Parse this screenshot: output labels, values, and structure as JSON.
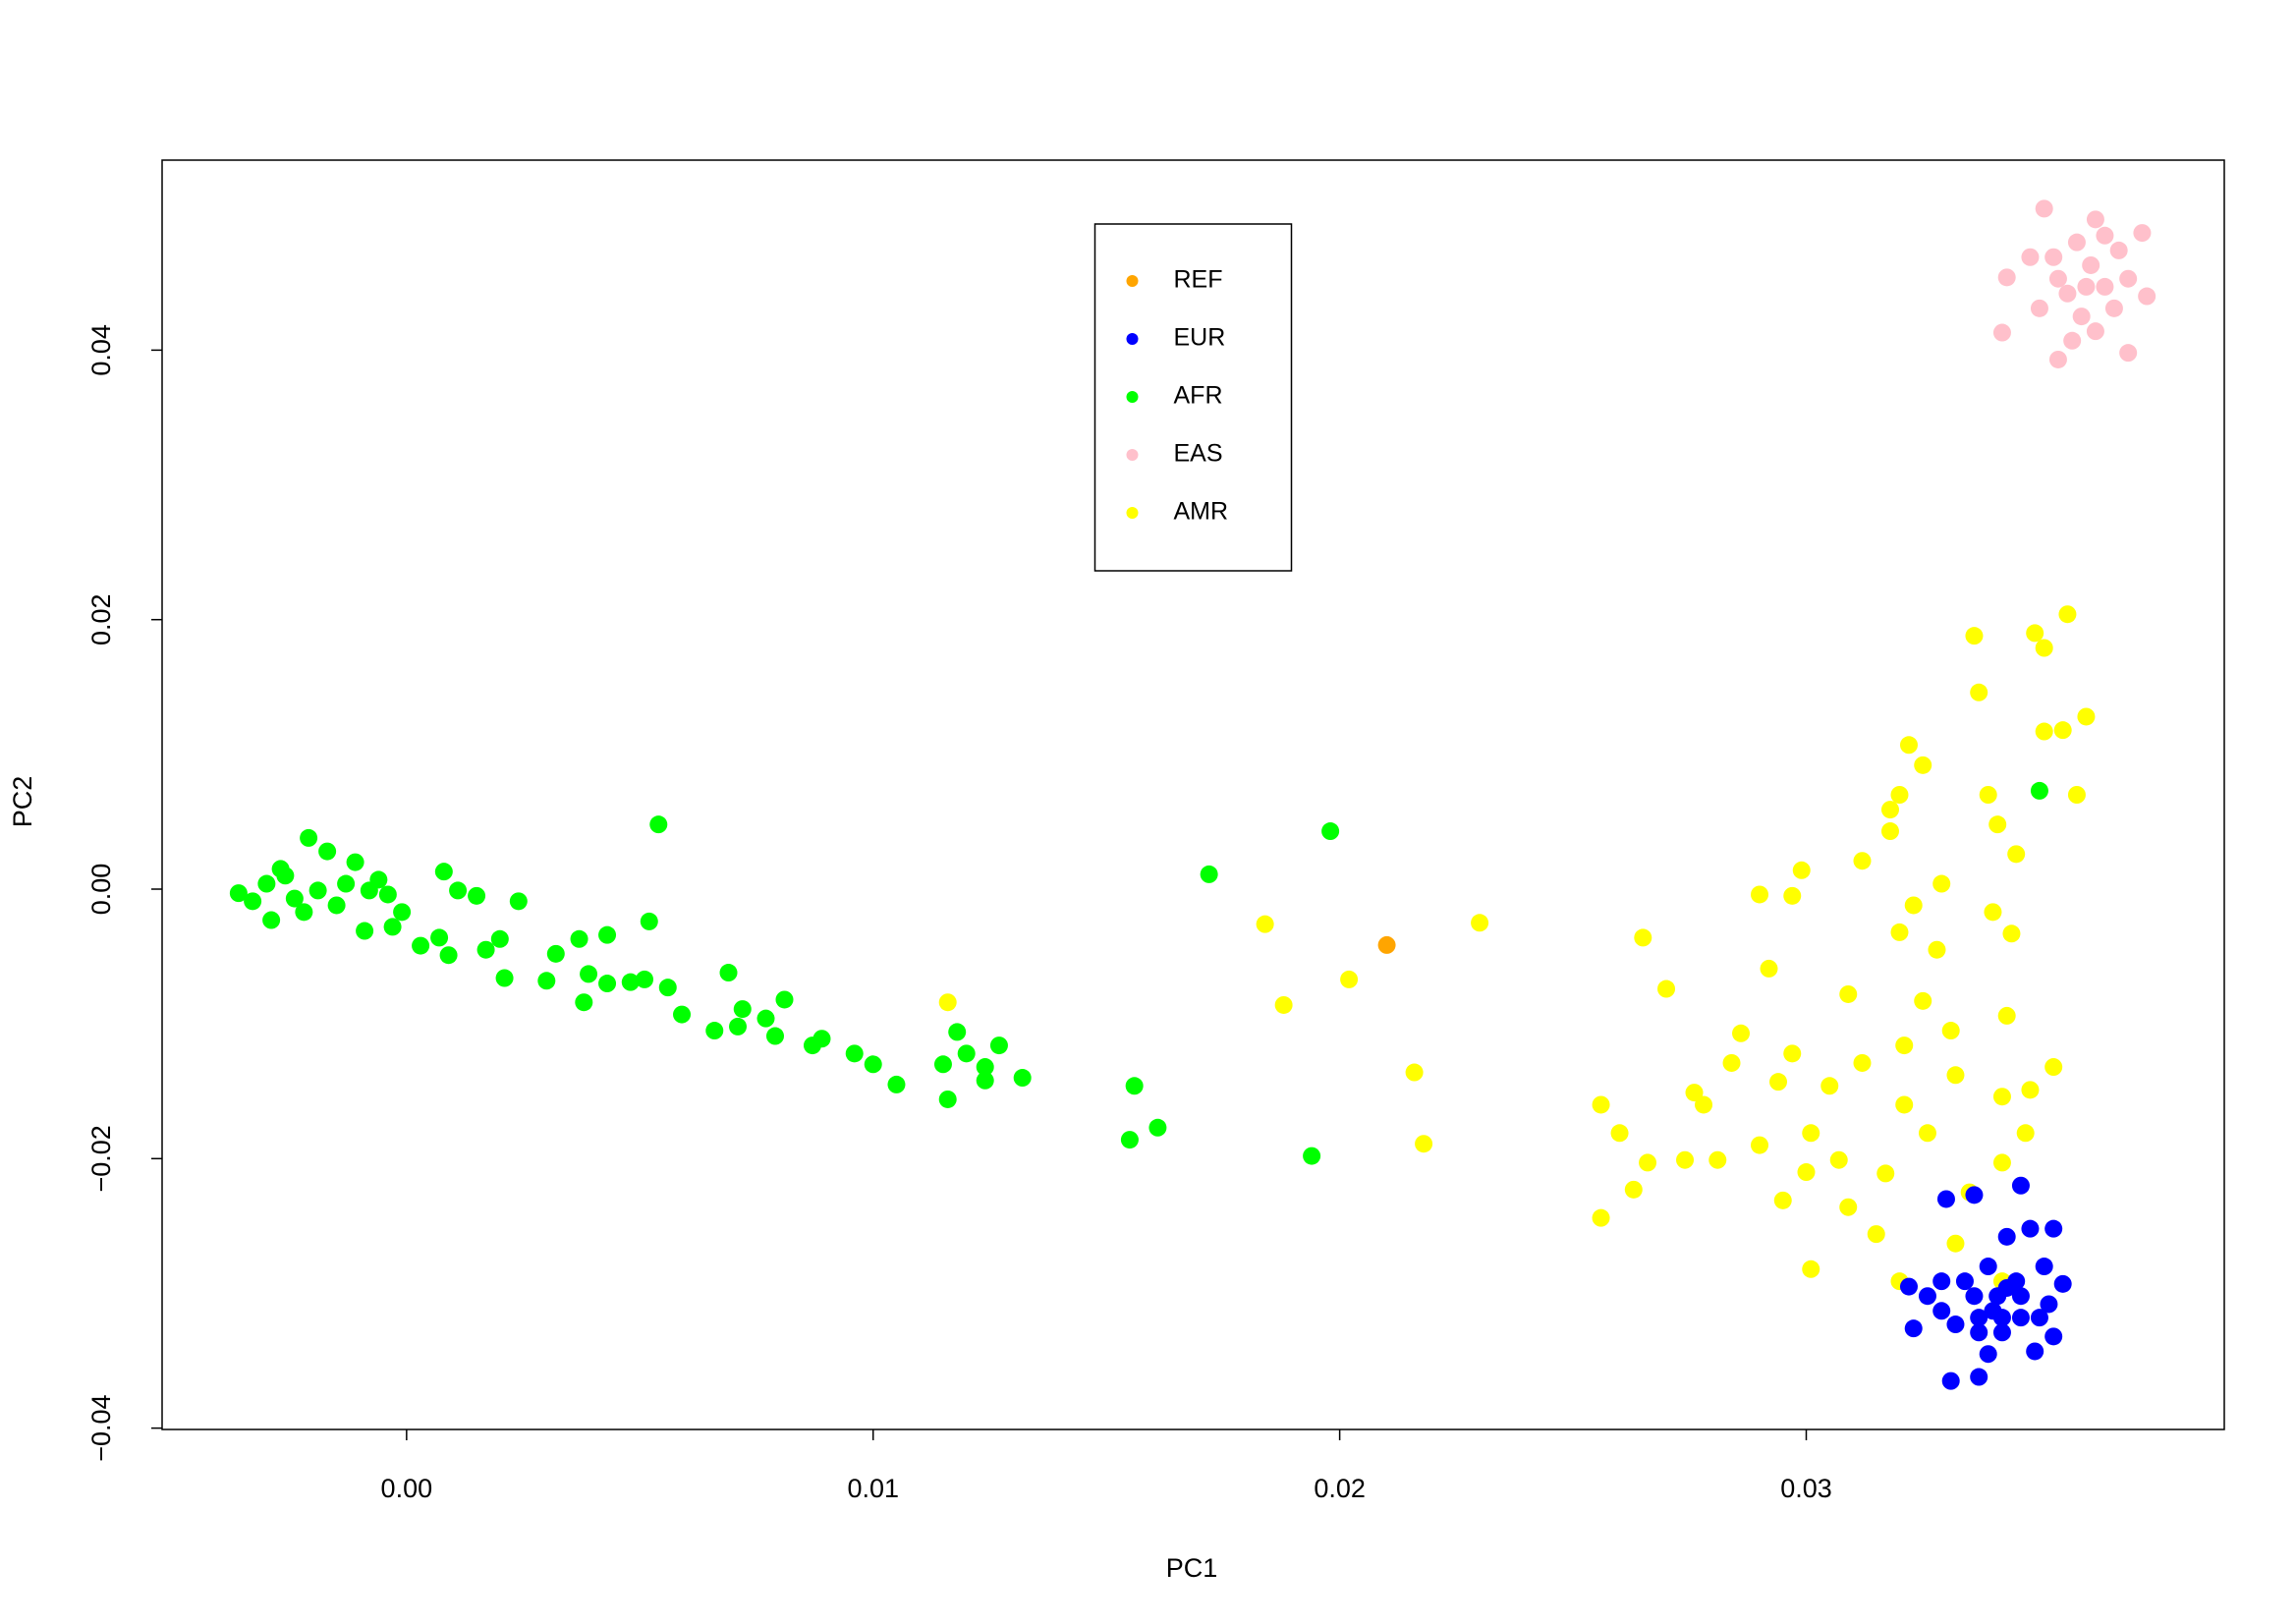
{
  "chart_data": {
    "type": "scatter",
    "xlabel": "PC1",
    "ylabel": "PC2",
    "xlim": [
      -0.00524,
      0.03896
    ],
    "ylim": [
      -0.0401,
      0.0541
    ],
    "xticks": [
      {
        "value": 0,
        "label": "0.00"
      },
      0.01,
      0.02,
      0.03
    ],
    "yticks": [
      {
        "value": -0.04,
        "label": "−0.04"
      },
      {
        "value": -0.02,
        "label": "−0.02"
      },
      {
        "value": 0,
        "label": "0.00"
      },
      0.02,
      0.04
    ],
    "grid": false,
    "legend": "top",
    "series": [
      {
        "name": "REF",
        "color": "#ffa500",
        "x": [
          0.02101
        ],
        "y": [
          -0.00415
        ]
      },
      {
        "name": "EUR",
        "color": "#0000ff",
        "x": [
          0.0322,
          0.0323,
          0.0326,
          0.0329,
          0.033,
          0.0331,
          0.0332,
          0.0334,
          0.0336,
          0.0337,
          0.0337,
          0.0339,
          0.0339,
          0.0341,
          0.0342,
          0.0343,
          0.0345,
          0.0346,
          0.0346,
          0.0348,
          0.0349,
          0.0351,
          0.0352,
          0.0353,
          0.0355,
          0.0353,
          0.0336,
          0.034,
          0.0343,
          0.0346,
          0.035,
          0.0329,
          0.0337,
          0.0342
        ],
        "y": [
          -0.0295,
          -0.0326,
          -0.0302,
          -0.0313,
          -0.023,
          -0.0365,
          -0.0323,
          -0.0291,
          -0.0227,
          -0.0362,
          -0.0318,
          -0.028,
          -0.0345,
          -0.0302,
          -0.0329,
          -0.0258,
          -0.0291,
          -0.022,
          -0.0318,
          -0.0252,
          -0.0343,
          -0.028,
          -0.0308,
          -0.0252,
          -0.0293,
          -0.0332,
          -0.0302,
          -0.0313,
          -0.0296,
          -0.0302,
          -0.0318,
          -0.0291,
          -0.0329,
          -0.0318
        ]
      },
      {
        "name": "AFR",
        "color": "#00ff00",
        "x": [
          -0.0036,
          -0.0033,
          -0.003,
          -0.0029,
          -0.0026,
          -0.0024,
          -0.0021,
          -0.0019,
          -0.0017,
          -0.0015,
          -0.0011,
          -0.0009,
          -0.0006,
          -0.0003,
          -0.0001,
          -0.0027,
          -0.0022,
          -0.0013,
          -0.0008,
          -0.0004,
          0.0003,
          0.0007,
          0.0008,
          0.0009,
          0.0011,
          0.0015,
          0.0017,
          0.002,
          0.0021,
          0.0024,
          0.003,
          0.0032,
          0.0037,
          0.0038,
          0.0039,
          0.0043,
          0.0043,
          0.0048,
          0.0051,
          0.0052,
          0.0054,
          0.0056,
          0.0059,
          0.0066,
          0.0069,
          0.0071,
          0.0072,
          0.0077,
          0.0079,
          0.0081,
          0.0087,
          0.0089,
          0.0096,
          0.01,
          0.0105,
          0.0115,
          0.0116,
          0.0118,
          0.012,
          0.0124,
          0.0124,
          0.0127,
          0.0132,
          0.0155,
          0.0156,
          0.0161,
          0.0172,
          0.0194,
          0.0198,
          0.035
        ],
        "y": [
          -0.0003,
          -0.0009,
          0.0004,
          -0.0023,
          0.001,
          -0.0007,
          0.0038,
          -0.0001,
          0.0028,
          -0.0012,
          0.002,
          -0.0031,
          0.0007,
          -0.0028,
          -0.0017,
          0.0015,
          -0.0017,
          0.0004,
          -0.0001,
          -0.0004,
          -0.0042,
          -0.0036,
          0.0013,
          -0.0049,
          -0.0001,
          -0.0005,
          -0.0045,
          -0.0037,
          -0.0066,
          -0.0009,
          -0.0068,
          -0.0048,
          -0.0037,
          -0.0084,
          -0.0063,
          -0.0034,
          -0.007,
          -0.0069,
          -0.0067,
          -0.0024,
          0.0048,
          -0.0073,
          -0.0093,
          -0.0105,
          -0.0062,
          -0.0102,
          -0.0089,
          -0.0096,
          -0.0109,
          -0.0082,
          -0.0116,
          -0.0111,
          -0.0122,
          -0.013,
          -0.0145,
          -0.013,
          -0.0156,
          -0.0106,
          -0.0122,
          -0.0132,
          -0.0142,
          -0.0116,
          -0.014,
          -0.0186,
          -0.0146,
          -0.0177,
          0.0011,
          -0.0198,
          0.0043,
          0.0073
        ]
      },
      {
        "name": "EAS",
        "color": "#ffc0cb",
        "x": [
          0.0351,
          0.0343,
          0.0342,
          0.0354,
          0.0369,
          0.0373,
          0.0372,
          0.0362,
          0.0358,
          0.0361,
          0.0364,
          0.0356,
          0.0353,
          0.0367,
          0.0359,
          0.035,
          0.0366,
          0.0362,
          0.0354,
          0.0369,
          0.036,
          0.0357,
          0.0348,
          0.0364
        ],
        "y": [
          0.0505,
          0.0454,
          0.0413,
          0.0393,
          0.0398,
          0.044,
          0.0487,
          0.0497,
          0.048,
          0.0463,
          0.0447,
          0.0442,
          0.0469,
          0.0474,
          0.0425,
          0.0431,
          0.0431,
          0.0414,
          0.0453,
          0.0453,
          0.0447,
          0.0407,
          0.0469,
          0.0485
        ]
      },
      {
        "name": "AMR",
        "color": "#ffff00",
        "x": [
          0.0116,
          0.0184,
          0.0188,
          0.0202,
          0.0216,
          0.0218,
          0.023,
          0.0256,
          0.0256,
          0.026,
          0.0263,
          0.0265,
          0.0266,
          0.027,
          0.0274,
          0.0276,
          0.0278,
          0.0281,
          0.0284,
          0.0286,
          0.029,
          0.029,
          0.0292,
          0.0294,
          0.0295,
          0.0297,
          0.0297,
          0.0299,
          0.03,
          0.0301,
          0.0301,
          0.0305,
          0.0307,
          0.0309,
          0.0309,
          0.0312,
          0.0312,
          0.0315,
          0.0317,
          0.0318,
          0.0318,
          0.032,
          0.032,
          0.0321,
          0.0321,
          0.0322,
          0.0323,
          0.0325,
          0.0325,
          0.0326,
          0.0328,
          0.0329,
          0.0331,
          0.0332,
          0.0335,
          0.0336,
          0.0337,
          0.0339,
          0.034,
          0.0341,
          0.0342,
          0.0343,
          0.0344,
          0.0345,
          0.0347,
          0.0348,
          0.0349,
          0.0351,
          0.0351,
          0.0353,
          0.0355,
          0.0356,
          0.0358,
          0.036,
          0.0342,
          0.0332,
          0.032,
          0.0342
        ],
        "y": [
          -0.0084,
          -0.0026,
          -0.0086,
          -0.0067,
          -0.0136,
          -0.0189,
          -0.0025,
          -0.0244,
          -0.016,
          -0.0181,
          -0.0223,
          -0.0036,
          -0.0203,
          -0.0074,
          -0.0201,
          -0.0151,
          -0.016,
          -0.0201,
          -0.0129,
          -0.0107,
          -0.0004,
          -0.019,
          -0.0059,
          -0.0143,
          -0.0231,
          -0.0122,
          -0.0005,
          0.0014,
          -0.021,
          -0.0282,
          -0.0181,
          -0.0146,
          -0.0201,
          -0.0078,
          -0.0236,
          0.0021,
          -0.0129,
          -0.0256,
          -0.0211,
          0.0043,
          0.0059,
          0.007,
          -0.0032,
          -0.0116,
          -0.016,
          0.0107,
          -0.0012,
          0.0092,
          -0.0083,
          -0.0181,
          -0.0045,
          0.0004,
          -0.0105,
          -0.0138,
          -0.0225,
          0.0188,
          0.0146,
          0.007,
          -0.0017,
          0.0048,
          -0.0154,
          -0.0094,
          -0.0033,
          0.0026,
          -0.0181,
          -0.0149,
          0.019,
          0.0179,
          0.0117,
          -0.0132,
          0.0118,
          0.0204,
          0.007,
          0.0128,
          -0.0291,
          -0.0263,
          -0.0291,
          -0.0203
        ]
      }
    ]
  }
}
